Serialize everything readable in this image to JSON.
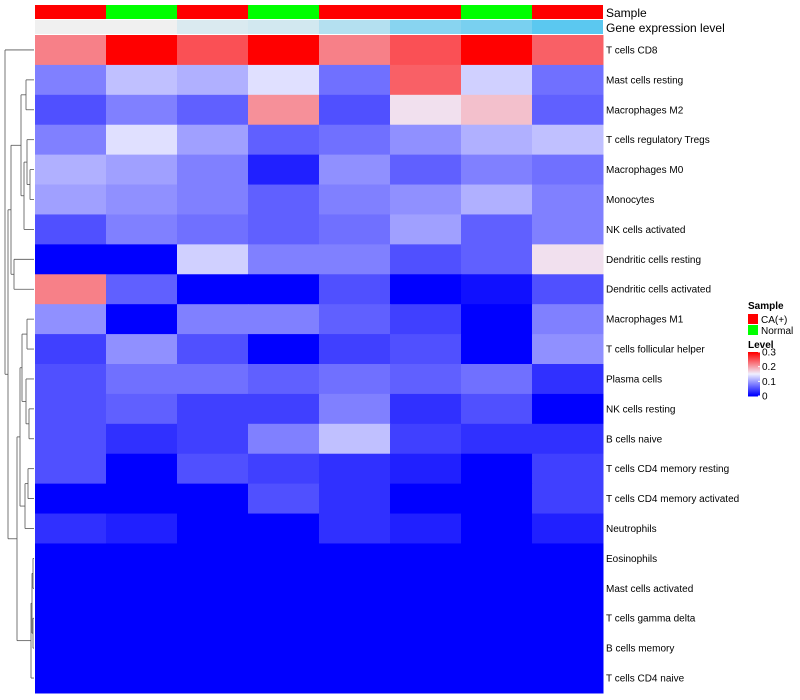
{
  "chart_data": {
    "type": "heatmap",
    "annotation_labels": [
      "Sample",
      "Gene expression level"
    ],
    "sample_annotation": [
      "CA(+)",
      "Normal",
      "CA(+)",
      "Normal",
      "CA(+)",
      "CA(+)",
      "Normal",
      "CA(+)"
    ],
    "gene_expression_annotation": [
      0.0,
      0.0,
      0.15,
      0.2,
      0.4,
      0.7,
      0.8,
      1.0
    ],
    "rows": [
      "T cells CD8",
      "Mast cells resting",
      "Macrophages M2",
      "T cells regulatory  Tregs",
      "Macrophages M0",
      "Monocytes",
      "NK cells activated",
      "Dendritic cells resting",
      "Dendritic cells activated",
      "Macrophages M1",
      "T cells follicular helper",
      "Plasma cells",
      "NK cells resting",
      "B cells naive",
      "T cells CD4 memory resting",
      "T cells CD4 memory activated",
      "Neutrophils",
      "Eosinophils",
      "Mast cells activated",
      "T cells gamma delta",
      "B cells memory",
      "T cells CD4 naive"
    ],
    "values": [
      [
        0.22,
        0.3,
        0.25,
        0.3,
        0.22,
        0.25,
        0.3,
        0.24
      ],
      [
        0.08,
        0.12,
        0.11,
        0.14,
        0.07,
        0.24,
        0.13,
        0.07
      ],
      [
        0.05,
        0.08,
        0.06,
        0.21,
        0.05,
        0.16,
        0.18,
        0.06
      ],
      [
        0.08,
        0.14,
        0.1,
        0.06,
        0.07,
        0.09,
        0.11,
        0.12
      ],
      [
        0.11,
        0.1,
        0.08,
        0.02,
        0.09,
        0.06,
        0.08,
        0.07
      ],
      [
        0.1,
        0.09,
        0.08,
        0.06,
        0.08,
        0.09,
        0.11,
        0.08
      ],
      [
        0.05,
        0.08,
        0.07,
        0.06,
        0.07,
        0.1,
        0.06,
        0.08
      ],
      [
        0.0,
        0.0,
        0.13,
        0.08,
        0.08,
        0.05,
        0.06,
        0.16
      ],
      [
        0.22,
        0.06,
        0.0,
        0.0,
        0.05,
        0.0,
        0.01,
        0.05
      ],
      [
        0.09,
        0.0,
        0.08,
        0.08,
        0.06,
        0.04,
        0.0,
        0.08
      ],
      [
        0.04,
        0.09,
        0.05,
        0.0,
        0.04,
        0.05,
        0.0,
        0.09
      ],
      [
        0.05,
        0.07,
        0.07,
        0.06,
        0.07,
        0.06,
        0.07,
        0.03
      ],
      [
        0.05,
        0.06,
        0.04,
        0.04,
        0.08,
        0.03,
        0.05,
        0.0
      ],
      [
        0.05,
        0.03,
        0.04,
        0.08,
        0.12,
        0.04,
        0.03,
        0.03
      ],
      [
        0.05,
        0.0,
        0.05,
        0.04,
        0.03,
        0.02,
        0.0,
        0.04
      ],
      [
        0.0,
        0.0,
        0.0,
        0.05,
        0.03,
        0.0,
        0.0,
        0.04
      ],
      [
        0.03,
        0.02,
        0.0,
        0.0,
        0.03,
        0.02,
        0.0,
        0.02
      ],
      [
        0.0,
        0.0,
        0.0,
        0.0,
        0.0,
        0.0,
        0.0,
        0.0
      ],
      [
        0.0,
        0.0,
        0.0,
        0.0,
        0.0,
        0.0,
        0.0,
        0.0
      ],
      [
        0.0,
        0.0,
        0.0,
        0.0,
        0.0,
        0.0,
        0.0,
        0.0
      ],
      [
        0.0,
        0.0,
        0.0,
        0.0,
        0.0,
        0.0,
        0.0,
        0.0
      ],
      [
        0.0,
        0.0,
        0.0,
        0.0,
        0.0,
        0.0,
        0.0,
        0.0
      ]
    ],
    "color_scale": {
      "low": "#0000ff",
      "mid": "#f0f0ff",
      "high": "#ff0000",
      "min": 0,
      "max": 0.3
    },
    "sample_colors": {
      "CA(+)": "#ff0000",
      "Normal": "#00ff00"
    },
    "expression_colors": {
      "low": "#f0f0f0",
      "high": "#5bc8f0"
    },
    "legend_sample": {
      "title": "Sample",
      "entries": [
        "CA(+)",
        "Normal"
      ]
    },
    "legend_level": {
      "title": "Level",
      "ticks": [
        "0.3",
        "0.2",
        "0.1",
        "0"
      ],
      "tick_values": [
        0.3,
        0.2,
        0.1,
        0
      ]
    },
    "legend_placement": "right",
    "row_dendrogram": true,
    "grid": false
  }
}
